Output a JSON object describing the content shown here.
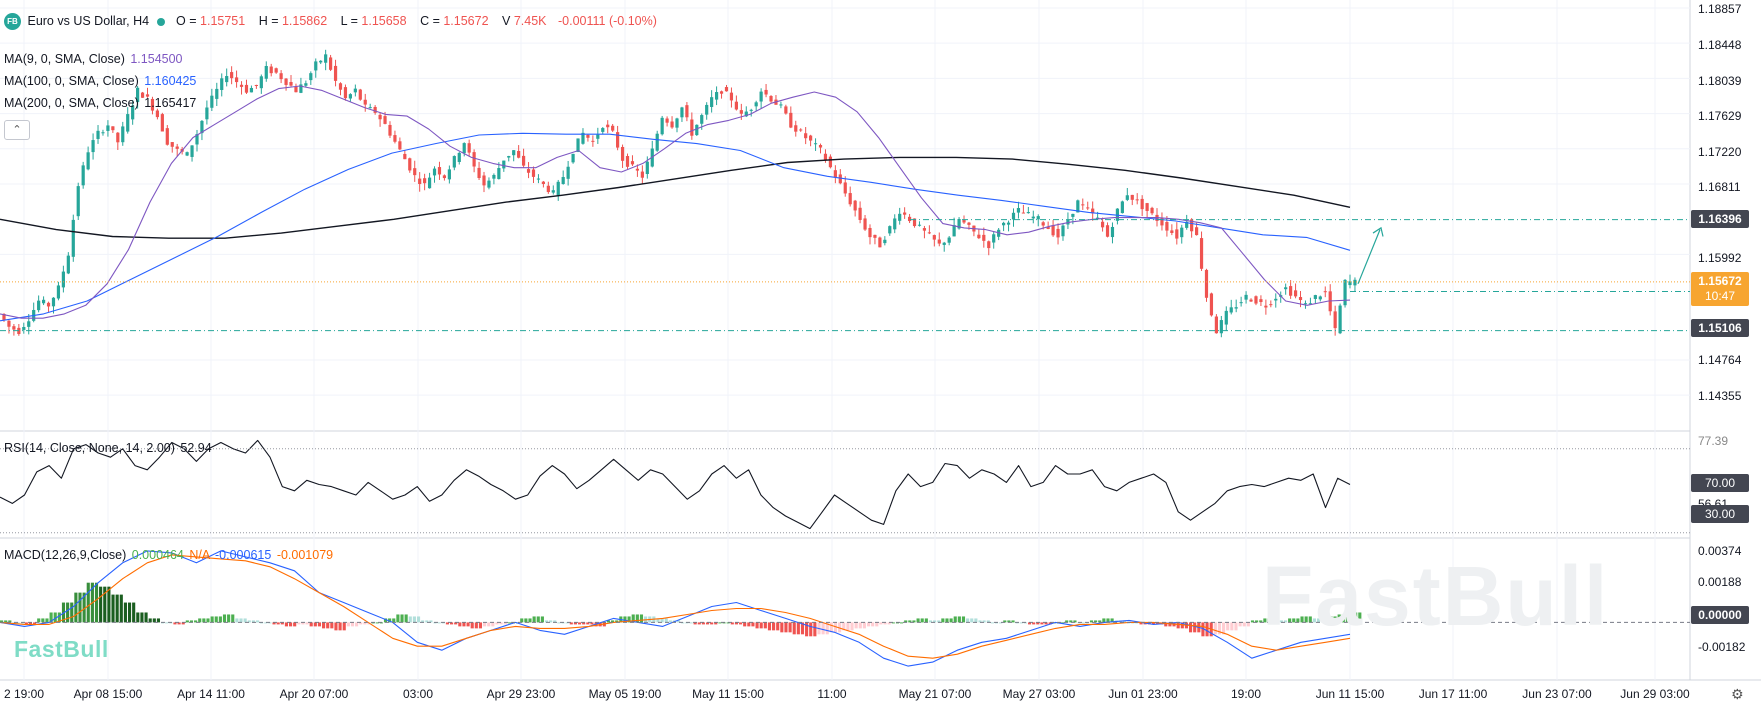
{
  "header": {
    "symbol_icon": "FB",
    "title": "Euro vs US Dollar, H4",
    "ohlc": [
      {
        "key": "O",
        "value": "1.15751"
      },
      {
        "key": "H",
        "value": "1.15862"
      },
      {
        "key": "L",
        "value": "1.15658"
      },
      {
        "key": "C",
        "value": "1.15672"
      }
    ],
    "volume": "7.45K",
    "change": "-0.00111 (-0.10%)"
  },
  "indicators": {
    "ma9": {
      "label": "MA(9, 0, SMA, Close)",
      "value": "1.154500",
      "color": "#7e57c2"
    },
    "ma100": {
      "label": "MA(100, 0, SMA, Close)",
      "value": "1.160425",
      "color": "#2962ff"
    },
    "ma200": {
      "label": "MA(200, 0, SMA, Close)",
      "value": "1.165417",
      "color": "#131722"
    },
    "rsi": {
      "label": "RSI(14, Close, None, 14, 2.00)",
      "value": "52.94"
    },
    "macd": {
      "label": "MACD(12,26,9,Close)",
      "hist": "0.000464",
      "na": "N/A",
      "macd": "-0.000615",
      "signal": "-0.001079"
    }
  },
  "price_axis": {
    "ticks": [
      "1.18857",
      "1.18448",
      "1.18039",
      "1.17629",
      "1.17220",
      "1.16811",
      "1.15992",
      "1.14764",
      "1.14355"
    ],
    "badges": [
      {
        "value": "1.16396",
        "color": "#131722"
      },
      {
        "value": "1.15672",
        "countdown": "10:47",
        "color": "#f7a530"
      },
      {
        "value": "1.15106",
        "color": "#131722"
      }
    ]
  },
  "rsi_axis": {
    "ticks": [
      "77.39",
      "56.61",
      "35.82"
    ],
    "badges": [
      "70.00",
      "30.00"
    ]
  },
  "macd_axis": {
    "ticks": [
      "0.00374",
      "0.00188",
      "-0.00182"
    ],
    "badge": "0.00000"
  },
  "time_axis": [
    "2 19:00",
    "Apr 08 15:00",
    "Apr 14 11:00",
    "Apr 20 07:00",
    "03:00",
    "Apr 29 23:00",
    "May 05 19:00",
    "May 11 15:00",
    "11:00",
    "May 21 07:00",
    "May 27 03:00",
    "Jun 01 23:00",
    "19:00",
    "Jun 11 15:00",
    "Jun 17 11:00",
    "Jun 23 07:00",
    "Jun 29 03:00"
  ],
  "branding": {
    "logo": "FastBull",
    "watermark": "FastBull"
  },
  "icons": {
    "collapse": "chevron-up-icon",
    "settings": "gear-icon"
  },
  "chart_data": {
    "type": "candlestick",
    "price_range": [
      1.1395,
      1.1895
    ],
    "levels": {
      "resistance": 1.16396,
      "support": 1.15106,
      "last": 1.15672
    },
    "price_path": [
      1.153,
      1.1515,
      1.151,
      1.1525,
      1.1545,
      1.154,
      1.156,
      1.16,
      1.168,
      1.172,
      1.174,
      1.175,
      1.173,
      1.176,
      1.179,
      1.178,
      1.176,
      1.173,
      1.172,
      1.1715,
      1.174,
      1.177,
      1.179,
      1.181,
      1.18,
      1.179,
      1.1795,
      1.1815,
      1.181,
      1.18,
      1.179,
      1.18,
      1.182,
      1.183,
      1.18,
      1.178,
      1.179,
      1.177,
      1.1765,
      1.175,
      1.173,
      1.171,
      1.169,
      1.168,
      1.17,
      1.169,
      1.171,
      1.173,
      1.17,
      1.168,
      1.169,
      1.171,
      1.172,
      1.17,
      1.169,
      1.168,
      1.167,
      1.169,
      1.172,
      1.174,
      1.173,
      1.175,
      1.174,
      1.171,
      1.17,
      1.169,
      1.172,
      1.176,
      1.175,
      1.177,
      1.174,
      1.176,
      1.178,
      1.179,
      1.178,
      1.176,
      1.177,
      1.179,
      1.178,
      1.177,
      1.175,
      1.174,
      1.173,
      1.172,
      1.17,
      1.168,
      1.166,
      1.164,
      1.162,
      1.161,
      1.163,
      1.165,
      1.164,
      1.163,
      1.162,
      1.161,
      1.162,
      1.164,
      1.163,
      1.162,
      1.161,
      1.163,
      1.164,
      1.165,
      1.1645,
      1.164,
      1.163,
      1.162,
      1.164,
      1.166,
      1.165,
      1.164,
      1.162,
      1.165,
      1.167,
      1.166,
      1.165,
      1.164,
      1.163,
      1.162,
      1.164,
      1.162,
      1.155,
      1.151,
      1.153,
      1.154,
      1.155,
      1.1545,
      1.154,
      1.155,
      1.156,
      1.155,
      1.154,
      1.155,
      1.1555,
      1.151,
      1.1567
    ],
    "ma9": [
      1.153,
      1.1525,
      1.1525,
      1.153,
      1.154,
      1.1565,
      1.1605,
      1.166,
      1.1705,
      1.1735,
      1.175,
      1.1765,
      1.178,
      1.1792,
      1.1795,
      1.179,
      1.178,
      1.177,
      1.1762,
      1.176,
      1.1745,
      1.1725,
      1.1712,
      1.1705,
      1.17,
      1.17,
      1.1712,
      1.172,
      1.17,
      1.1695,
      1.1705,
      1.1722,
      1.174,
      1.175,
      1.1755,
      1.1762,
      1.1775,
      1.1782,
      1.1788,
      1.1782,
      1.1765,
      1.1735,
      1.17,
      1.1665,
      1.1635,
      1.163,
      1.1628,
      1.1622,
      1.1625,
      1.1632,
      1.1637,
      1.164,
      1.1642,
      1.1642,
      1.1642,
      1.164,
      1.1636,
      1.163,
      1.16,
      1.157,
      1.1545,
      1.154,
      1.1545,
      1.1546
    ],
    "ma100": [
      1.1522,
      1.153,
      1.1545,
      1.157,
      1.1595,
      1.162,
      1.1648,
      1.1675,
      1.1698,
      1.1717,
      1.1728,
      1.1738,
      1.174,
      1.1739,
      1.1739,
      1.1733,
      1.1728,
      1.172,
      1.17,
      1.169,
      1.1683,
      1.1675,
      1.1668,
      1.1662,
      1.1655,
      1.1648,
      1.1643,
      1.1638,
      1.163,
      1.1622,
      1.1619,
      1.1604
    ],
    "ma200": [
      1.164,
      1.1628,
      1.162,
      1.1618,
      1.1618,
      1.1624,
      1.1632,
      1.164,
      1.165,
      1.166,
      1.1668,
      1.1677,
      1.1687,
      1.1697,
      1.1706,
      1.171,
      1.1712,
      1.1712,
      1.171,
      1.1704,
      1.1697,
      1.1688,
      1.1678,
      1.1668,
      1.1654
    ],
    "rsi": {
      "range": [
        28,
        78
      ],
      "overbought": 70,
      "oversold": 30,
      "values": [
        47,
        44,
        48,
        59,
        62,
        56,
        70,
        72,
        68,
        66,
        70,
        62,
        60,
        66,
        73,
        70,
        64,
        70,
        73,
        70,
        68,
        74,
        66,
        52,
        50,
        55,
        53,
        52,
        50,
        48,
        54,
        50,
        46,
        48,
        52,
        45,
        48,
        55,
        60,
        57,
        53,
        50,
        46,
        48,
        57,
        62,
        58,
        51,
        55,
        60,
        65,
        60,
        55,
        60,
        58,
        52,
        46,
        50,
        58,
        62,
        56,
        60,
        48,
        42,
        38,
        35,
        32,
        40,
        48,
        44,
        40,
        36,
        34,
        50,
        58,
        52,
        54,
        63,
        62,
        56,
        60,
        58,
        54,
        62,
        52,
        54,
        62,
        58,
        58,
        60,
        52,
        50,
        54,
        56,
        58,
        54,
        40,
        36,
        40,
        44,
        50,
        52,
        53,
        52,
        54,
        56,
        55,
        58,
        42,
        56,
        53
      ]
    },
    "macd": {
      "range": [
        -0.0029,
        0.0042
      ],
      "hist": [
        0.0001,
        0.0,
        -0.0001,
        0.0002,
        0.0005,
        0.001,
        0.0015,
        0.002,
        0.0018,
        0.0014,
        0.001,
        0.0005,
        0.0002,
        0.0,
        -0.0001,
        0.0001,
        0.0002,
        0.0003,
        0.0004,
        0.0002,
        0.0001,
        0.0,
        -0.0001,
        -0.0002,
        -0.0001,
        -0.0002,
        -0.0003,
        -0.0004,
        -0.0002,
        -0.0001,
        0.0,
        0.0002,
        0.0004,
        0.0003,
        0.0001,
        0.0,
        -0.0001,
        -0.0002,
        -0.0003,
        -0.0002,
        -0.0001,
        0.0,
        0.0002,
        0.0003,
        0.0001,
        0.0,
        -0.0001,
        -0.0001,
        -0.0002,
        0.0001,
        0.0003,
        0.0004,
        0.0003,
        0.0002,
        0.0001,
        0.0,
        -0.0001,
        -0.0001,
        0.0,
        -0.0001,
        -0.0002,
        -0.0003,
        -0.0004,
        -0.0005,
        -0.0006,
        -0.0007,
        -0.0006,
        -0.0005,
        -0.0004,
        -0.0003,
        -0.0002,
        -0.0001,
        0.0,
        0.0001,
        0.0002,
        0.0001,
        0.0002,
        0.0003,
        0.0002,
        0.0001,
        0.0,
        0.0001,
        0.0,
        -0.0001,
        -0.0001,
        0.0,
        0.0001,
        0.0,
        0.0001,
        0.0002,
        0.0001,
        0.0,
        -0.0001,
        -0.0001,
        -0.0002,
        -0.0003,
        -0.0005,
        -0.0007,
        -0.0006,
        -0.0004,
        -0.0002,
        0.0001,
        0.0002,
        0.0001,
        0.0002,
        0.0003,
        0.0002,
        0.0003,
        0.0004,
        0.0005
      ],
      "macd_line": [
        0.0,
        -0.0002,
        0.0,
        0.0008,
        0.002,
        0.003,
        0.0036,
        0.0035,
        0.003,
        0.0036,
        0.0033,
        0.003,
        0.0026,
        0.0015,
        0.001,
        0.0005,
        0.0,
        -0.001,
        -0.0014,
        -0.0008,
        -0.0004,
        0.0,
        -0.0004,
        -0.0006,
        -0.0002,
        0.0002,
        0.0,
        -0.0002,
        0.0003,
        0.0008,
        0.001,
        0.0006,
        0.0002,
        -0.0002,
        -0.0005,
        -0.001,
        -0.0018,
        -0.0022,
        -0.002,
        -0.0014,
        -0.001,
        -0.0008,
        -0.0004,
        0.0,
        -0.0002,
        0.0,
        0.0001,
        -0.0001,
        0.0,
        -0.0003,
        -0.001,
        -0.0018,
        -0.0014,
        -0.001,
        -0.0008,
        -0.0006
      ],
      "signal_line": [
        0.0,
        -0.0001,
        -0.0001,
        0.0003,
        0.0012,
        0.0022,
        0.003,
        0.0034,
        0.0033,
        0.0032,
        0.0031,
        0.0028,
        0.0022,
        0.0015,
        0.0008,
        0.0,
        -0.0008,
        -0.0012,
        -0.0012,
        -0.0008,
        -0.0004,
        -0.0002,
        -0.0003,
        -0.0003,
        -0.0002,
        0.0,
        0.0001,
        0.0002,
        0.0004,
        0.0006,
        0.0007,
        0.0007,
        0.0005,
        0.0002,
        -0.0002,
        -0.0006,
        -0.0012,
        -0.0017,
        -0.0018,
        -0.0016,
        -0.0012,
        -0.0009,
        -0.0006,
        -0.0003,
        -0.0001,
        -0.0001,
        0.0,
        0.0,
        -0.0001,
        -0.0002,
        -0.0006,
        -0.0012,
        -0.0014,
        -0.0012,
        -0.001,
        -0.0008
      ]
    }
  }
}
